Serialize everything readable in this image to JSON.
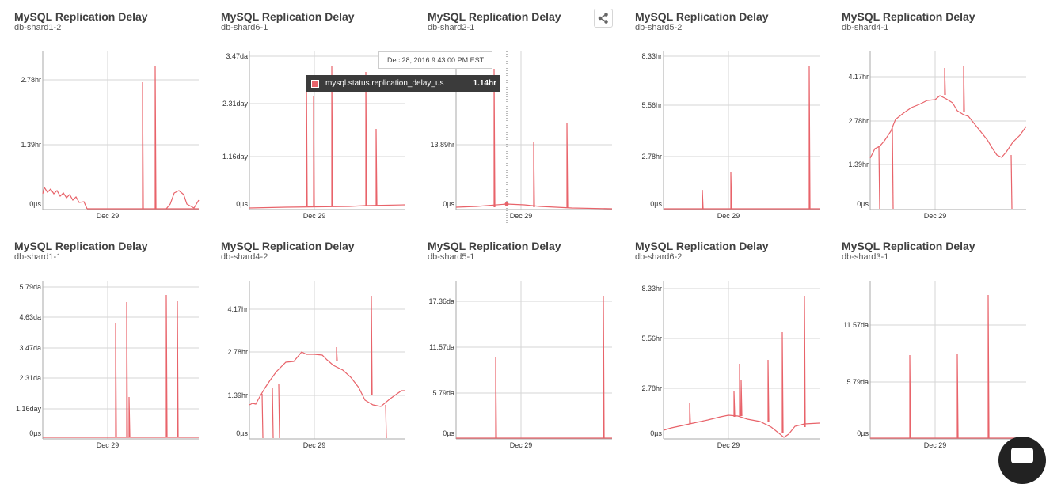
{
  "colors": {
    "series": "#e8636a",
    "grid": "#d6d6d6",
    "axis": "#aaaaaa"
  },
  "panels": [
    {
      "title": "MySQL Replication Delay",
      "host": "db-shard1-2",
      "y_ticks": [
        "2.78hr",
        "1.39hr",
        "0µs"
      ],
      "x_label": "Dec 29"
    },
    {
      "title": "MySQL Replication Delay",
      "host": "db-shard6-1",
      "y_ticks": [
        "3.47da",
        "2.31day",
        "1.16day",
        "0µs"
      ],
      "x_label": "Dec 29"
    },
    {
      "title": "MySQL Replication Delay",
      "host": "db-shard2-1",
      "y_ticks": [
        "13.89hr",
        "0µs"
      ],
      "x_label": "Dec 29"
    },
    {
      "title": "MySQL Replication Delay",
      "host": "db-shard5-2",
      "y_ticks": [
        "8.33hr",
        "5.56hr",
        "2.78hr",
        "0µs"
      ],
      "x_label": "Dec 29"
    },
    {
      "title": "MySQL Replication Delay",
      "host": "db-shard4-1",
      "y_ticks": [
        "4.17hr",
        "2.78hr",
        "1.39hr",
        "0µs"
      ],
      "x_label": "Dec 29"
    },
    {
      "title": "MySQL Replication Delay",
      "host": "db-shard1-1",
      "y_ticks": [
        "5.79da",
        "4.63da",
        "3.47da",
        "2.31da",
        "1.16day",
        "0µs"
      ],
      "x_label": "Dec 29"
    },
    {
      "title": "MySQL Replication Delay",
      "host": "db-shard4-2",
      "y_ticks": [
        "4.17hr",
        "2.78hr",
        "1.39hr",
        "0µs"
      ],
      "x_label": "Dec 29"
    },
    {
      "title": "MySQL Replication Delay",
      "host": "db-shard5-1",
      "y_ticks": [
        "17.36da",
        "11.57da",
        "5.79da",
        "0µs"
      ],
      "x_label": "Dec 29"
    },
    {
      "title": "MySQL Replication Delay",
      "host": "db-shard6-2",
      "y_ticks": [
        "8.33hr",
        "5.56hr",
        "2.78hr",
        "0µs"
      ],
      "x_label": "Dec 29"
    },
    {
      "title": "MySQL Replication Delay",
      "host": "db-shard3-1",
      "y_ticks": [
        "11.57da",
        "5.79da",
        "0µs"
      ],
      "x_label": "Dec 29"
    }
  ],
  "tooltip": {
    "date": "Dec 28, 2016 9:43:00 PM EST",
    "metric": "mysql.status.replication_delay_us",
    "value": "1.14hr"
  },
  "share": {
    "icon": "share-icon"
  },
  "chat": {
    "icon": "chat-icon"
  }
}
